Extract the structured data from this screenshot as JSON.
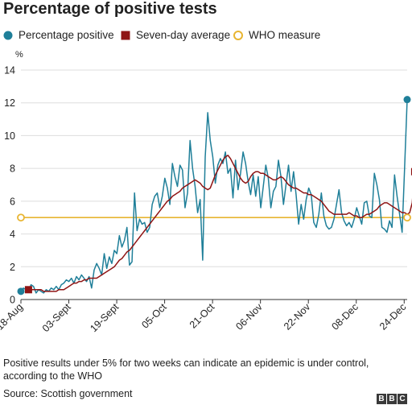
{
  "title": "Percentage of positive tests",
  "caption": "Positive results under 5% for two weeks can indicate an epidemic is under control, according to the WHO",
  "source": "Source: Scottish government",
  "brand": {
    "letters": [
      "B",
      "B",
      "C"
    ]
  },
  "colors": {
    "daily": "#1f7f99",
    "average": "#8f1414",
    "who": "#e8b532"
  },
  "chart_data": {
    "type": "line",
    "ylabel": "%",
    "ylim": [
      0,
      14
    ],
    "yticks": [
      0,
      2,
      4,
      6,
      8,
      10,
      12,
      14
    ],
    "xtick_labels": [
      "18-Aug",
      "03-Sept",
      "19-Sept",
      "05-Oct",
      "21-Oct",
      "06-Nov",
      "22-Nov",
      "08-Dec",
      "24-Dec"
    ],
    "x_start_label": "18-Aug",
    "grid": true,
    "legend_position": "top",
    "series": [
      {
        "name": "Percentage positive",
        "marker": "circle",
        "values": [
          0.5,
          0.7,
          0.6,
          0.5,
          0.9,
          0.8,
          0.4,
          0.6,
          0.5,
          0.4,
          0.6,
          0.5,
          0.7,
          0.6,
          0.8,
          0.6,
          0.9,
          1.0,
          1.2,
          1.1,
          1.3,
          1.0,
          1.4,
          1.2,
          1.5,
          1.3,
          1.1,
          1.4,
          0.7,
          1.8,
          2.2,
          1.9,
          1.5,
          2.8,
          1.9,
          2.6,
          2.2,
          3.0,
          2.8,
          3.9,
          3.2,
          3.6,
          4.4,
          2.1,
          2.3,
          6.5,
          4.2,
          4.9,
          4.6,
          4.7,
          4.1,
          4.4,
          5.8,
          6.3,
          6.5,
          5.6,
          6.3,
          7.4,
          6.8,
          5.8,
          8.3,
          7.5,
          6.9,
          8.2,
          7.9,
          5.6,
          6.5,
          9.7,
          8.0,
          6.9,
          5.3,
          6.1,
          2.4,
          8.7,
          11.4,
          9.7,
          8.7,
          7.1,
          8.2,
          8.6,
          8.3,
          9.0,
          7.7,
          8.0,
          6.2,
          8.5,
          6.7,
          7.7,
          9.0,
          8.3,
          7.2,
          6.4,
          7.6,
          6.3,
          7.5,
          5.6,
          6.9,
          8.2,
          7.4,
          5.6,
          6.6,
          6.9,
          8.5,
          7.5,
          5.8,
          7.0,
          8.2,
          6.6,
          7.8,
          6.4,
          4.6,
          5.8,
          4.9,
          6.1,
          6.8,
          6.4,
          4.7,
          4.4,
          5.2,
          6.5,
          5.1,
          4.5,
          4.3,
          4.4,
          4.9,
          5.8,
          6.7,
          5.3,
          4.8,
          4.5,
          4.7,
          4.4,
          4.9,
          5.6,
          5.1,
          4.6,
          5.9,
          6.0,
          5.1,
          5.0,
          7.7,
          7.0,
          6.1,
          4.4,
          4.3,
          4.1,
          4.8,
          4.4,
          7.6,
          6.3,
          5.2,
          4.1,
          8.1,
          12.2
        ]
      },
      {
        "name": "Seven-day average",
        "marker": "square",
        "values": [
          0.6,
          0.6,
          0.6,
          0.6,
          0.6,
          0.6,
          0.5,
          0.5,
          0.5,
          0.5,
          0.5,
          0.5,
          0.6,
          0.6,
          0.6,
          0.7,
          0.8,
          0.9,
          1.0,
          1.0,
          1.1,
          1.1,
          1.2,
          1.2,
          1.3,
          1.3,
          1.3,
          1.3,
          1.4,
          1.5,
          1.6,
          1.7,
          1.8,
          1.9,
          2.0,
          2.2,
          2.4,
          2.5,
          2.7,
          2.9,
          3.0,
          3.2,
          3.4,
          3.6,
          3.8,
          4.0,
          4.2,
          4.4,
          4.6,
          4.8,
          5.0,
          5.2,
          5.4,
          5.6,
          5.8,
          6.0,
          6.1,
          6.3,
          6.4,
          6.5,
          6.6,
          6.8,
          6.9,
          7.0,
          7.1,
          7.2,
          7.3,
          7.2,
          7.1,
          6.9,
          6.8,
          6.7,
          6.8,
          7.2,
          7.6,
          7.9,
          8.2,
          8.5,
          8.7,
          8.8,
          8.6,
          8.3,
          8.0,
          7.7,
          7.4,
          7.2,
          7.1,
          7.2,
          7.5,
          7.7,
          7.8,
          7.8,
          7.7,
          7.7,
          7.6,
          7.5,
          7.4,
          7.3,
          7.3,
          7.4,
          7.5,
          7.4,
          7.2,
          7.0,
          6.9,
          6.8,
          6.8,
          6.7,
          6.6,
          6.5,
          6.5,
          6.4,
          6.4,
          6.3,
          6.2,
          6.1,
          6.0,
          5.8,
          5.6,
          5.4,
          5.3,
          5.2,
          5.2,
          5.2,
          5.2,
          5.2,
          5.2,
          5.3,
          5.2,
          5.1,
          5.1,
          5.0,
          5.0,
          5.1,
          5.2,
          5.2,
          5.3,
          5.4,
          5.5,
          5.7,
          5.8,
          5.9,
          5.9,
          5.8,
          5.7,
          5.6,
          5.5,
          5.4,
          5.3,
          5.3,
          5.2,
          5.3,
          5.9,
          7.8
        ]
      },
      {
        "name": "WHO measure",
        "marker": "circle-open",
        "values": [
          5,
          5
        ]
      }
    ]
  }
}
